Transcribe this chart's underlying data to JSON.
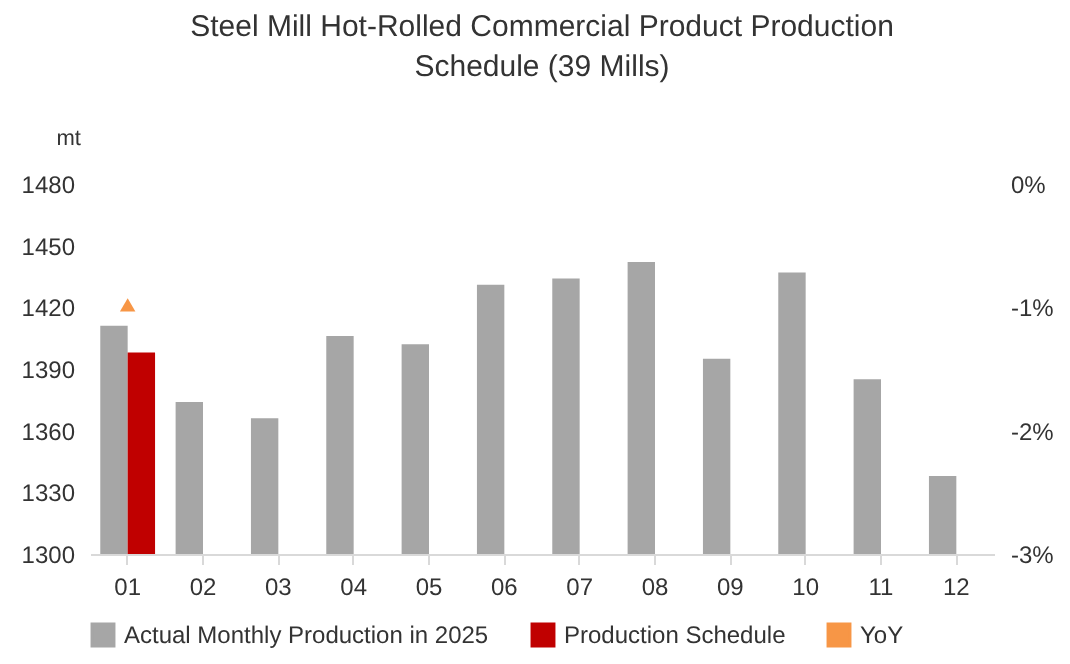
{
  "chart_data": {
    "type": "bar",
    "title": "Steel Mill Hot-Rolled Commercial Product Production Schedule (39 Mills)",
    "ylabel": "mt",
    "categories": [
      "01",
      "02",
      "03",
      "04",
      "05",
      "06",
      "07",
      "08",
      "09",
      "10",
      "11",
      "12"
    ],
    "series": [
      {
        "name": "Actual Monthly Production in 2025",
        "color": "#a6a6a6",
        "values": [
          1411,
          1374,
          1366,
          1406,
          1402,
          1431,
          1434,
          1442,
          1395,
          1437,
          1385,
          1338
        ]
      },
      {
        "name": "Production Schedule",
        "color": "#c00000",
        "values": [
          1398,
          null,
          null,
          null,
          null,
          null,
          null,
          null,
          null,
          null,
          null,
          null
        ]
      },
      {
        "name": "YoY",
        "type": "line",
        "axis": "y2",
        "marker": "triangle",
        "color": "#f79646",
        "values": [
          -0.98,
          null,
          null,
          null,
          null,
          null,
          null,
          null,
          null,
          null,
          null,
          null
        ]
      }
    ],
    "ylim": [
      1300,
      1480
    ],
    "yticks": [
      1300,
      1330,
      1360,
      1390,
      1420,
      1450,
      1480
    ],
    "y2lim": [
      -3,
      0
    ],
    "y2ticks": [
      {
        "value": -3,
        "label": "-3%"
      },
      {
        "value": -2,
        "label": "-2%"
      },
      {
        "value": -1,
        "label": "-1%"
      },
      {
        "value": 0,
        "label": "0%"
      }
    ],
    "grid": false,
    "legend": "bottom"
  }
}
